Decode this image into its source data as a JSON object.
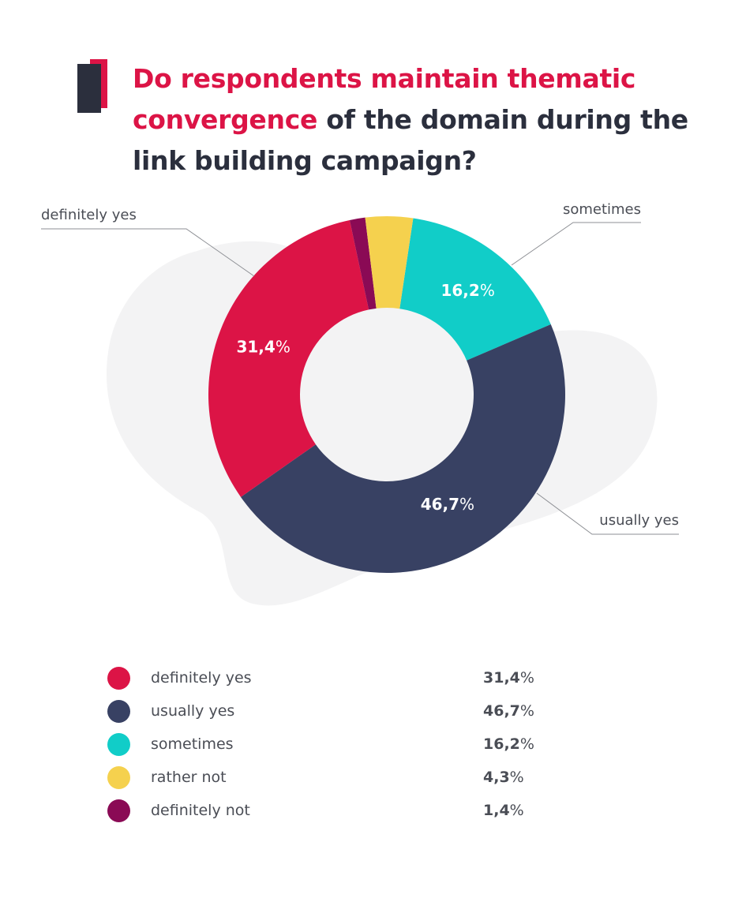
{
  "header": {
    "title_accent": "Do respondents maintain thematic convergence",
    "title_rest": " of the domain during the link building campaign?"
  },
  "colors": {
    "accent": "#dc1446",
    "dark": "#2b2f3d",
    "background_blob": "#f3f3f4"
  },
  "chart_data": {
    "type": "pie",
    "variant": "donut",
    "title": "Do respondents maintain thematic convergence of the domain during the link building campaign?",
    "value_suffix": "%",
    "slices": [
      {
        "label": "definitely yes",
        "value": 31.4,
        "display": "31,4",
        "color": "#dc1446",
        "callout": "definitely yes"
      },
      {
        "label": "usually yes",
        "value": 46.7,
        "display": "46,7",
        "color": "#384163",
        "callout": "usually yes"
      },
      {
        "label": "sometimes",
        "value": 16.2,
        "display": "16,2",
        "color": "#11cdc8",
        "callout": "sometimes"
      },
      {
        "label": "rather not",
        "value": 4.3,
        "display": "4,3",
        "color": "#f5d14e",
        "callout": ""
      },
      {
        "label": "definitely not",
        "value": 1.4,
        "display": "1,4",
        "color": "#8a0a55",
        "callout": ""
      }
    ],
    "legend_position": "bottom"
  },
  "legend": {
    "items": [
      {
        "label": "definitely yes",
        "value": "31,4",
        "color": "#dc1446"
      },
      {
        "label": "usually yes",
        "value": "46,7",
        "color": "#384163"
      },
      {
        "label": "sometimes",
        "value": "16,2",
        "color": "#11cdc8"
      },
      {
        "label": "rather not",
        "value": "4,3",
        "color": "#f5d14e"
      },
      {
        "label": "definitely not",
        "value": "1,4",
        "color": "#8a0a55"
      }
    ],
    "suffix": "%"
  }
}
